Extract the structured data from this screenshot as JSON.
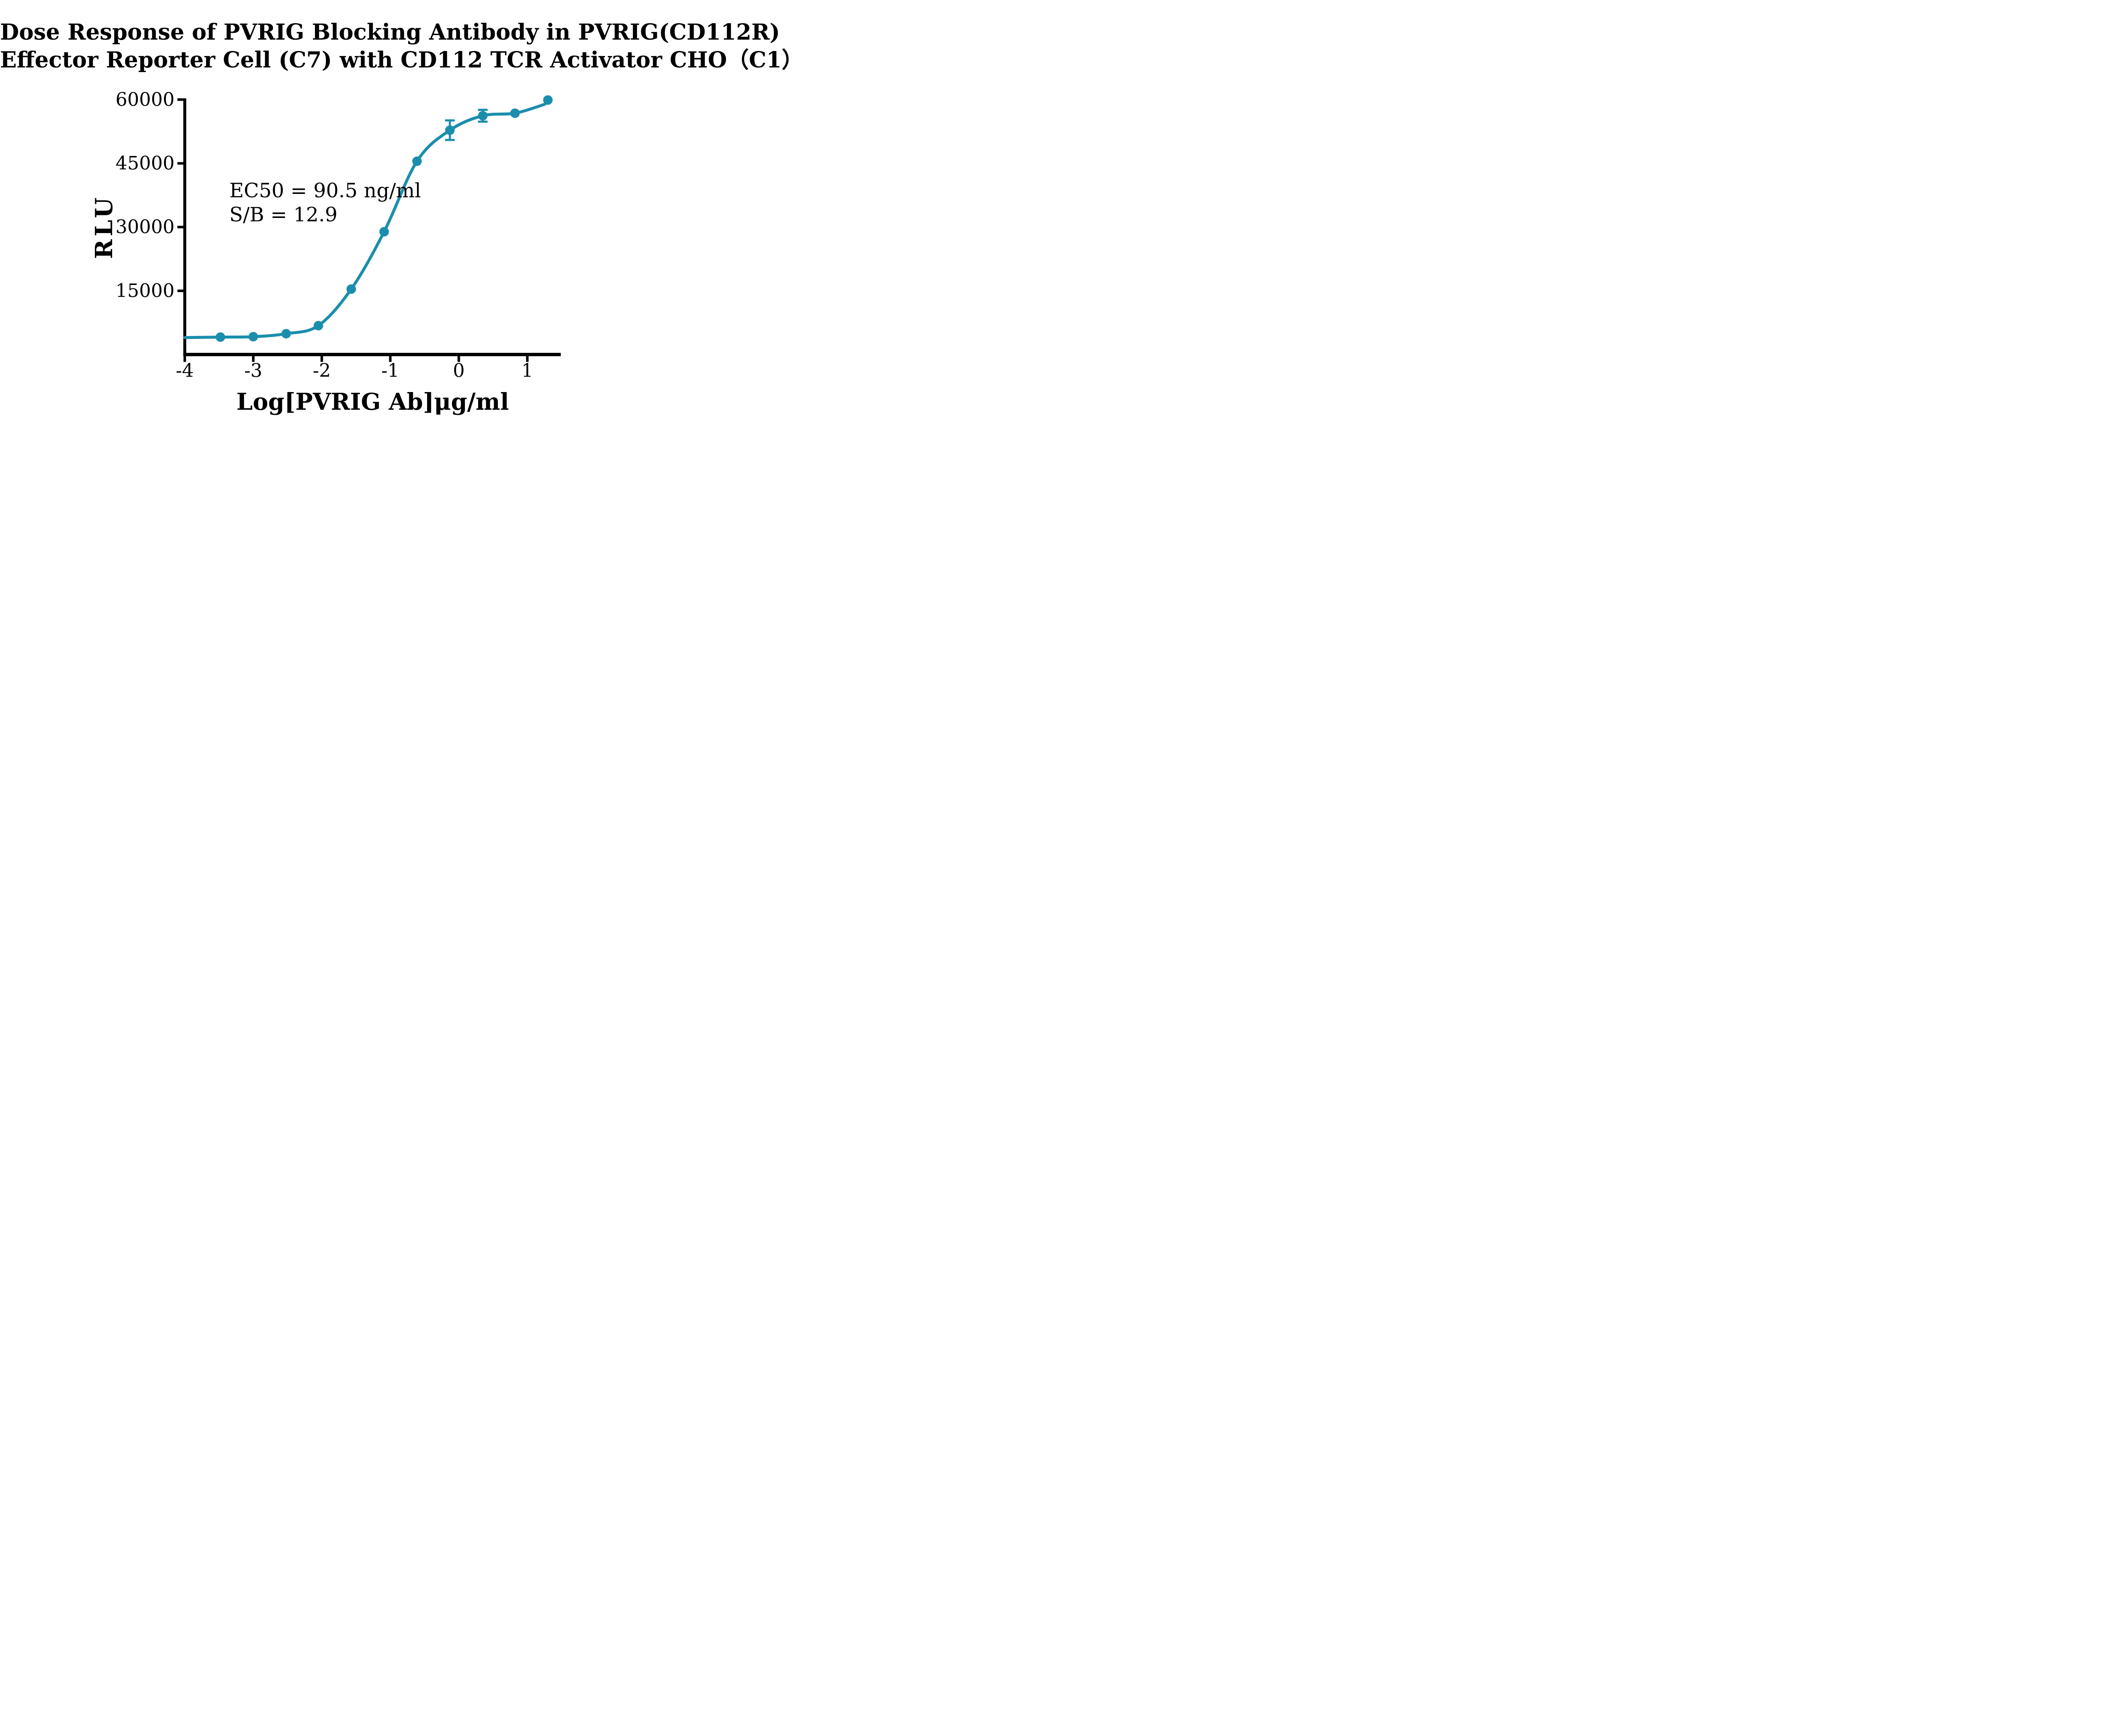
{
  "title": {
    "line1": "Dose Response of PVRIG Blocking Antibody in PVRIG(CD112R)",
    "line2": "Effector Reporter Cell (C7) with CD112 TCR Activator CHO（C1）"
  },
  "annotation": {
    "line1": "EC50 = 90.5 ng/ml",
    "line2": "S/B = 12.9"
  },
  "colors": {
    "curve": "#1B8EAD",
    "axis": "#000000",
    "text": "#000000",
    "background": "#FFFFFF"
  },
  "chart_data": {
    "type": "line",
    "title": "Dose Response of PVRIG Blocking Antibody in PVRIG(CD112R) Effector Reporter Cell (C7) with CD112 TCR Activator CHO（C1）",
    "xlabel": "Log[PVRIG Ab]μg/ml",
    "ylabel": "RLU",
    "x_ticks": [
      -4,
      -3,
      -2,
      -1,
      0,
      1
    ],
    "y_ticks": [
      15000,
      30000,
      45000,
      60000
    ],
    "xlim": [
      -4,
      1.49
    ],
    "ylim": [
      0,
      60000
    ],
    "grid": false,
    "legend": "none",
    "ec50_label_value": "90.5 ng/ml",
    "s_over_b": 12.9,
    "series": [
      {
        "name": "PVRIG blocking antibody",
        "marker": "circle",
        "points": [
          {
            "x": -3.48,
            "y": 4100
          },
          {
            "x": -3.0,
            "y": 4200
          },
          {
            "x": -2.52,
            "y": 4900
          },
          {
            "x": -2.05,
            "y": 6800
          },
          {
            "x": -1.57,
            "y": 15400
          },
          {
            "x": -1.09,
            "y": 28900
          },
          {
            "x": -0.61,
            "y": 45500
          },
          {
            "x": -0.13,
            "y": 52800,
            "error": 2300
          },
          {
            "x": 0.35,
            "y": 56200,
            "error": 1400
          },
          {
            "x": 0.82,
            "y": 56800
          },
          {
            "x": 1.3,
            "y": 59900
          }
        ],
        "curve_start": {
          "x": -4.0,
          "y": 4000
        },
        "curve_end": {
          "x": 1.255,
          "y": 58900
        }
      }
    ]
  }
}
